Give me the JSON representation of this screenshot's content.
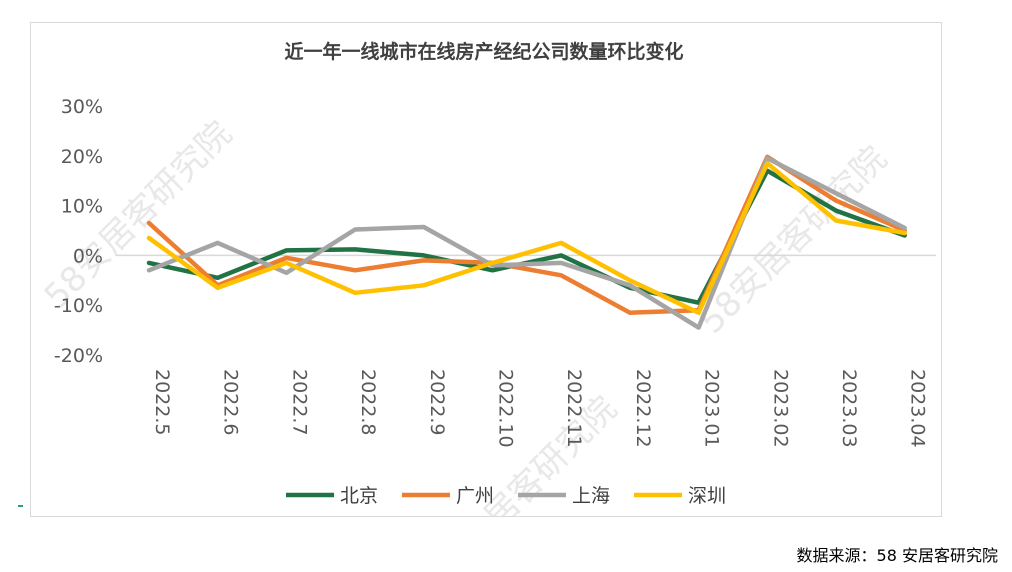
{
  "source_label": "数据来源：58 安居客研究院",
  "watermark_text": "58安居客研究院",
  "chart_data": {
    "type": "line",
    "title": "近一年一线城市在线房产经纪公司数量环比变化",
    "categories": [
      "2022.5",
      "2022.6",
      "2022.7",
      "2022.8",
      "2022.9",
      "2022.10",
      "2022.11",
      "2022.12",
      "2023.01",
      "2023.02",
      "2023.03",
      "2023.04"
    ],
    "ylim": [
      -20,
      30
    ],
    "yticks": [
      -20,
      -10,
      0,
      10,
      20,
      30
    ],
    "ytick_labels": [
      "-20%",
      "-10%",
      "0%",
      "10%",
      "20%",
      "30%"
    ],
    "grid": "zero-line only",
    "legend_position": "bottom",
    "series": [
      {
        "name": "北京",
        "color": "#217346",
        "values": [
          -1.5,
          -4.5,
          1.0,
          1.2,
          0.0,
          -3.0,
          0.0,
          -6.5,
          -9.5,
          17.0,
          9.0,
          4.0
        ]
      },
      {
        "name": "广州",
        "color": "#ed7d31",
        "values": [
          6.5,
          -6.0,
          -0.5,
          -3.0,
          -1.0,
          -1.5,
          -4.0,
          -11.5,
          -11.0,
          19.8,
          11.0,
          5.0
        ]
      },
      {
        "name": "上海",
        "color": "#a5a5a5",
        "values": [
          -3.0,
          2.5,
          -3.5,
          5.2,
          5.7,
          -2.0,
          -1.5,
          -6.0,
          -14.5,
          19.5,
          12.5,
          5.5
        ]
      },
      {
        "name": "深圳",
        "color": "#ffc000",
        "values": [
          3.5,
          -6.5,
          -1.5,
          -7.5,
          -6.0,
          -1.5,
          2.5,
          -5.0,
          -11.5,
          18.5,
          7.0,
          4.5
        ]
      }
    ]
  }
}
